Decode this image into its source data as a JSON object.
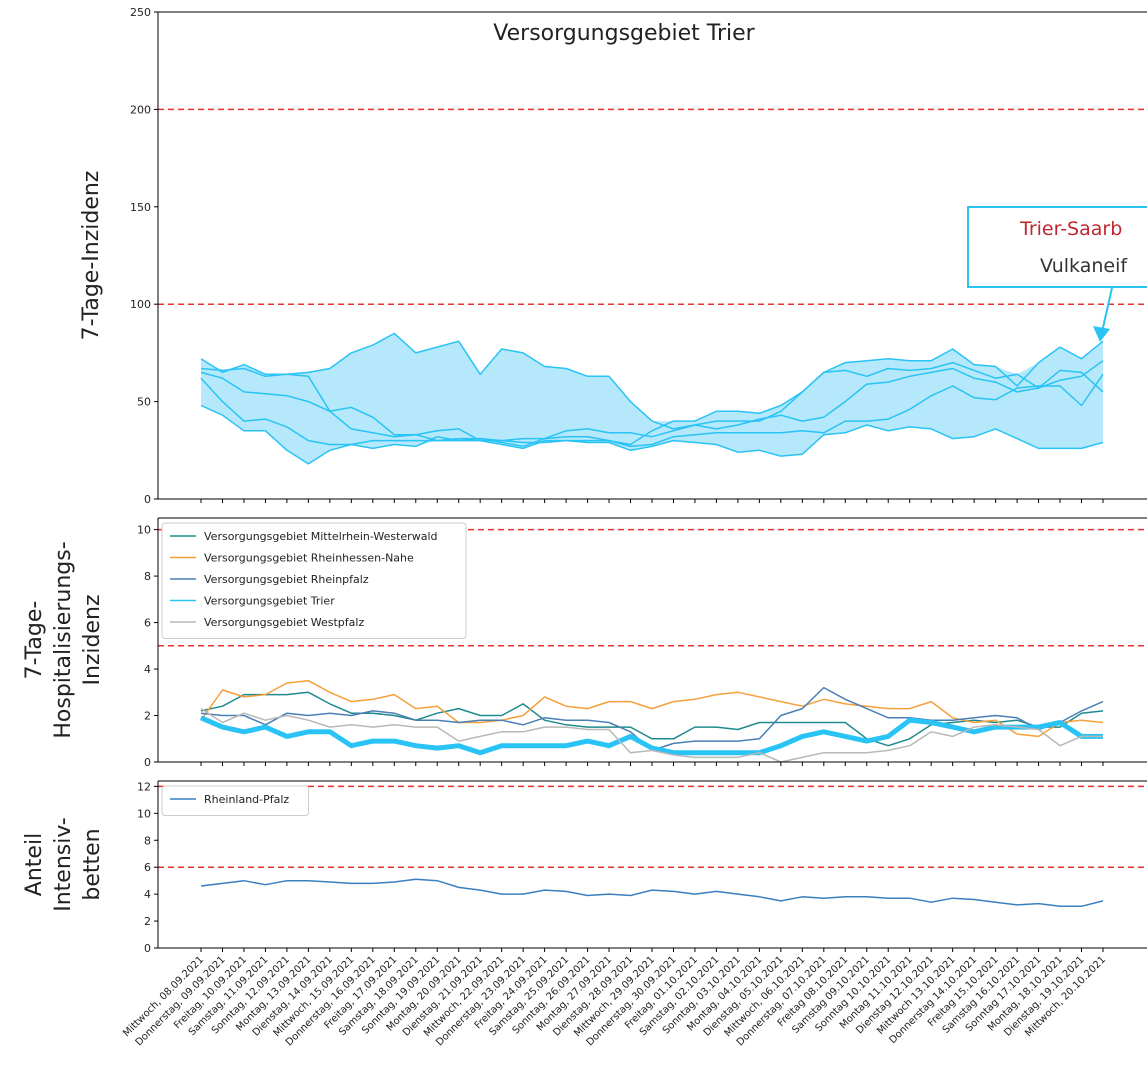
{
  "chart_data": [
    {
      "type": "band-line",
      "title": "Versorgungsgebiet Trier",
      "y_label": [
        "7-Tage-Inzidenz"
      ],
      "ylim": [
        0,
        250
      ],
      "yticks": [
        0,
        50,
        100,
        150,
        200,
        250
      ],
      "reference_lines": [
        200,
        100
      ],
      "reference_color": "#e8312f",
      "color": "#29c3f5",
      "band_color": "#b5e8fa",
      "annotation": {
        "lines": [
          "Trier-Saarb",
          "Vulkaneif"
        ],
        "colors": [
          "#c0272d",
          "#333333"
        ]
      },
      "series": [
        {
          "values": [
            72,
            65,
            69,
            64,
            64,
            65,
            67,
            75,
            79,
            85,
            75,
            78,
            81,
            64,
            77,
            75,
            68,
            67,
            63,
            63,
            50,
            40,
            36,
            38,
            40,
            40,
            40,
            45,
            55,
            65,
            70,
            71,
            72,
            71,
            71,
            77,
            69,
            68,
            58,
            70,
            78,
            72,
            81
          ]
        },
        {
          "values": [
            67,
            66,
            67,
            63,
            64,
            63,
            45,
            47,
            42,
            33,
            33,
            30,
            30,
            31,
            30,
            29,
            29,
            30,
            30,
            30,
            28,
            35,
            40,
            40,
            45,
            45,
            44,
            48,
            55,
            65,
            66,
            63,
            67,
            66,
            67,
            70,
            66,
            62,
            64,
            57,
            61,
            63,
            71
          ]
        },
        {
          "values": [
            65,
            62,
            55,
            54,
            53,
            50,
            45,
            36,
            34,
            32,
            33,
            35,
            36,
            30,
            30,
            31,
            31,
            35,
            36,
            34,
            34,
            32,
            35,
            38,
            36,
            38,
            41,
            43,
            40,
            42,
            50,
            59,
            60,
            63,
            65,
            67,
            62,
            60,
            55,
            57,
            66,
            65,
            55
          ]
        },
        {
          "values": [
            62,
            50,
            40,
            41,
            37,
            30,
            28,
            28,
            30,
            30,
            30,
            30,
            31,
            31,
            29,
            27,
            31,
            32,
            32,
            30,
            27,
            28,
            32,
            33,
            34,
            34,
            34,
            34,
            35,
            34,
            40,
            40,
            41,
            46,
            53,
            58,
            52,
            51,
            57,
            58,
            58,
            48,
            64
          ]
        },
        {
          "values": [
            48,
            43,
            35,
            35,
            25,
            18,
            25,
            28,
            26,
            28,
            27,
            32,
            30,
            30,
            28,
            26,
            30,
            30,
            29,
            29,
            25,
            27,
            30,
            29,
            28,
            24,
            25,
            22,
            23,
            33,
            34,
            38,
            35,
            37,
            36,
            31,
            32,
            36,
            31,
            26,
            26,
            26,
            29
          ]
        }
      ]
    },
    {
      "type": "line",
      "y_label": [
        "7-Tage-",
        "Hospitalisierungs-",
        "Inzidenz"
      ],
      "ylim": [
        0,
        10.5
      ],
      "yticks": [
        0,
        2,
        4,
        6,
        8,
        10
      ],
      "reference_lines": [
        10,
        5
      ],
      "reference_color": "#e8312f",
      "legend": "upper left",
      "series": [
        {
          "name": "Versorgungsgebiet Mittelrhein-Westerwald",
          "color": "#1f8a8c",
          "values": [
            2.2,
            2.4,
            2.9,
            2.9,
            2.9,
            3.0,
            2.5,
            2.1,
            2.1,
            2.0,
            1.8,
            2.1,
            2.3,
            2.0,
            2.0,
            2.5,
            1.8,
            1.6,
            1.5,
            1.5,
            1.5,
            1.0,
            1.0,
            1.5,
            1.5,
            1.4,
            1.7,
            1.7,
            1.7,
            1.7,
            1.7,
            1.0,
            0.7,
            1.0,
            1.6,
            1.7,
            1.8,
            1.7,
            1.8,
            1.5,
            1.5,
            2.1,
            2.2
          ]
        },
        {
          "name": "Versorgungsgebiet Rheinhessen-Nahe",
          "color": "#f5a03c",
          "values": [
            1.8,
            3.1,
            2.8,
            2.9,
            3.4,
            3.5,
            3.0,
            2.6,
            2.7,
            2.9,
            2.3,
            2.4,
            1.7,
            1.7,
            1.8,
            2.0,
            2.8,
            2.4,
            2.3,
            2.6,
            2.6,
            2.3,
            2.6,
            2.7,
            2.9,
            3.0,
            2.8,
            2.6,
            2.4,
            2.7,
            2.5,
            2.4,
            2.3,
            2.3,
            2.6,
            1.9,
            1.7,
            1.8,
            1.2,
            1.1,
            1.7,
            1.8,
            1.7
          ]
        },
        {
          "name": "Versorgungsgebiet Rheinpfalz",
          "color": "#4a7fb5",
          "values": [
            2.1,
            2.0,
            2.0,
            1.6,
            2.1,
            2.0,
            2.1,
            2.0,
            2.2,
            2.1,
            1.8,
            1.8,
            1.7,
            1.8,
            1.8,
            1.6,
            1.9,
            1.8,
            1.8,
            1.7,
            1.3,
            0.5,
            0.8,
            0.9,
            0.9,
            0.9,
            1.0,
            2.0,
            2.3,
            3.2,
            2.7,
            2.3,
            1.9,
            1.9,
            1.8,
            1.8,
            1.9,
            2.0,
            1.9,
            1.4,
            1.7,
            2.2,
            2.6
          ]
        },
        {
          "name": "Versorgungsgebiet Trier",
          "color": "#29c3f5",
          "width": 5,
          "values": [
            1.9,
            1.5,
            1.3,
            1.5,
            1.1,
            1.3,
            1.3,
            0.7,
            0.9,
            0.9,
            0.7,
            0.6,
            0.7,
            0.4,
            0.7,
            0.7,
            0.7,
            0.7,
            0.9,
            0.7,
            1.1,
            0.6,
            0.4,
            0.4,
            0.4,
            0.4,
            0.4,
            0.7,
            1.1,
            1.3,
            1.1,
            0.9,
            1.1,
            1.8,
            1.7,
            1.5,
            1.3,
            1.5,
            1.5,
            1.5,
            1.7,
            1.1,
            1.1
          ]
        },
        {
          "name": "Versorgungsgebiet Westpfalz",
          "color": "#b8b8b8",
          "values": [
            2.3,
            1.7,
            2.1,
            1.8,
            2.0,
            1.8,
            1.5,
            1.6,
            1.5,
            1.6,
            1.5,
            1.5,
            0.9,
            1.1,
            1.3,
            1.3,
            1.5,
            1.5,
            1.4,
            1.4,
            0.4,
            0.5,
            0.3,
            0.2,
            0.2,
            0.2,
            0.4,
            0.0,
            0.2,
            0.4,
            0.4,
            0.4,
            0.5,
            0.7,
            1.3,
            1.1,
            1.5,
            1.6,
            1.5,
            1.4,
            0.7,
            1.1,
            1.1
          ]
        }
      ]
    },
    {
      "type": "line",
      "y_label": [
        "Anteil",
        "Intensiv-",
        "betten"
      ],
      "ylim": [
        0,
        12.4
      ],
      "yticks": [
        0,
        2,
        4,
        6,
        8,
        10,
        12
      ],
      "reference_lines": [
        12,
        6
      ],
      "reference_color": "#e8312f",
      "legend": "upper left",
      "categories": [
        "Mittwoch, 08.09.2021",
        "Donnerstag, 09.09.2021",
        "Freitag, 10.09.2021",
        "Samstag, 11.09.2021",
        "Sonntag, 12.09.2021",
        "Montag, 13.09.2021",
        "Dienstag, 14.09.2021",
        "Mittwoch, 15.09.2021",
        "Donnerstag, 16.09.2021",
        "Freitag, 17.09.2021",
        "Samstag, 18.09.2021",
        "Sonntag, 19.09.2021",
        "Montag, 20.09.2021",
        "Dienstag, 21.09.2021",
        "Mittwoch, 22.09.2021",
        "Donnerstag, 23.09.2021",
        "Freitag, 24.09.2021",
        "Samstag, 25.09.2021",
        "Sonntag, 26.09.2021",
        "Montag, 27.09.2021",
        "Dienstag, 28.09.2021",
        "Mittwoch, 29.09.2021",
        "Donnerstag, 30.09.2021",
        "Freitag, 01.10.2021",
        "Samstag, 02.10.2021",
        "Sonntag, 03.10.2021",
        "Montag, 04.10.2021",
        "Dienstag, 05.10.2021",
        "Mittwoch, 06.10.2021",
        "Donnerstag, 07.10.2021",
        "Freitag 08.10.2021",
        "Samstag 09.10.2021",
        "Sonntag 10.10.2021",
        "Montag 11.10.2021",
        "Dienstag 12.10.2021",
        "Mittwoch 13.10.2021",
        "Donnerstag 14.10.2021",
        "Freitag 15.10.2021",
        "Samstag 16.10.2021",
        "Sonntag 17.10.2021",
        "Montag, 18.10.2021",
        "Dienstag, 19.10.2021",
        "Mittwoch, 20.10.2021"
      ],
      "series": [
        {
          "name": "Rheinland-Pfalz",
          "color": "#3a7fc0",
          "values": [
            4.6,
            4.8,
            5.0,
            4.7,
            5.0,
            5.0,
            4.9,
            4.8,
            4.8,
            4.9,
            5.1,
            5.0,
            4.5,
            4.3,
            4.0,
            4.0,
            4.3,
            4.2,
            3.9,
            4.0,
            3.9,
            4.3,
            4.2,
            4.0,
            4.2,
            4.0,
            3.8,
            3.5,
            3.8,
            3.7,
            3.8,
            3.8,
            3.7,
            3.7,
            3.4,
            3.7,
            3.6,
            3.4,
            3.2,
            3.3,
            3.1,
            3.1,
            3.5
          ]
        }
      ]
    }
  ]
}
